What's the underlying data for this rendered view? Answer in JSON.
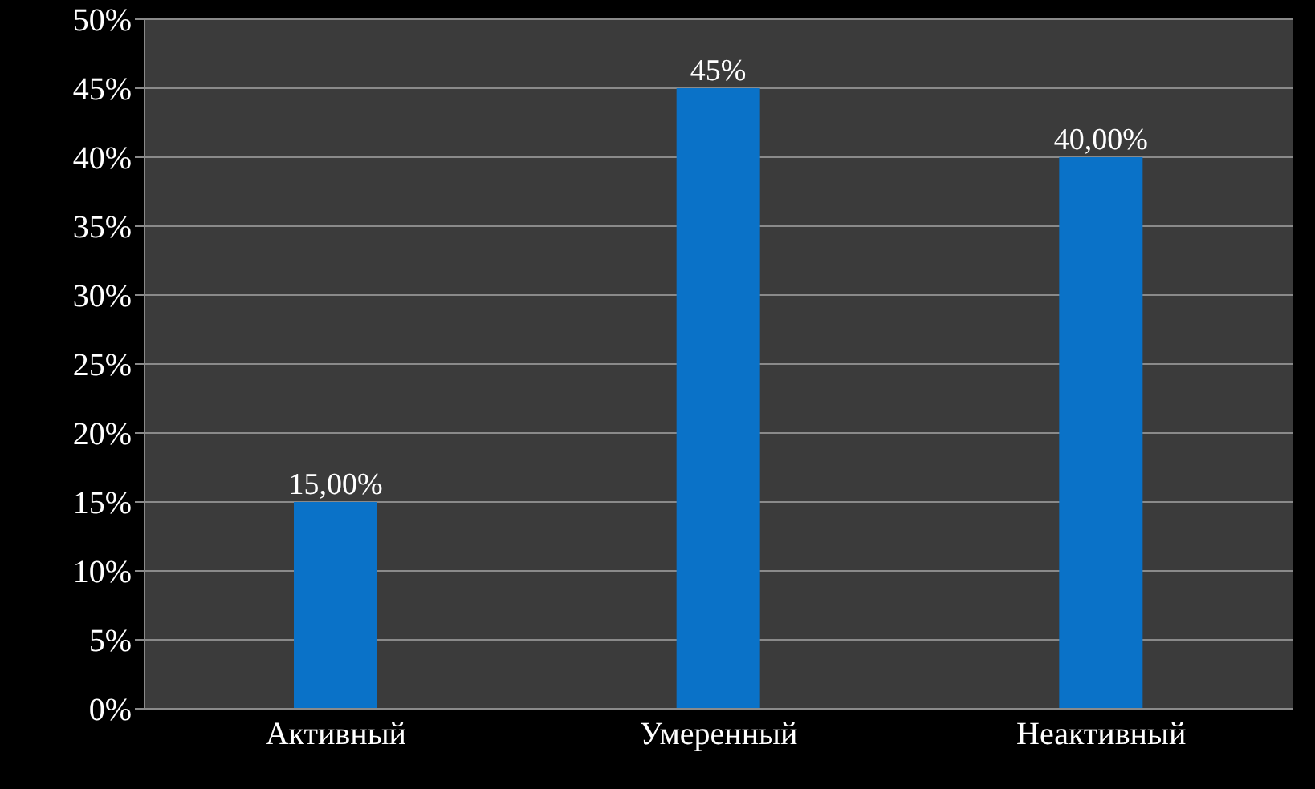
{
  "chart_data": {
    "type": "bar",
    "categories": [
      "Активный",
      "Умеренный",
      "Неактивный"
    ],
    "values": [
      15,
      45,
      40
    ],
    "color": "#0a72c8",
    "value_labels": [
      "15,00%",
      "45%",
      "40,00%"
    ],
    "ylim": [
      0,
      50
    ],
    "yticks": [
      {
        "value": 0,
        "label": "0%"
      },
      {
        "value": 5,
        "label": "5%"
      },
      {
        "value": 10,
        "label": "10%"
      },
      {
        "value": 15,
        "label": "15%"
      },
      {
        "value": 20,
        "label": "20%"
      },
      {
        "value": 25,
        "label": "25%"
      },
      {
        "value": 30,
        "label": "30%"
      },
      {
        "value": 35,
        "label": "35%"
      },
      {
        "value": 40,
        "label": "40%"
      },
      {
        "value": 45,
        "label": "45%"
      },
      {
        "value": 50,
        "label": "50%"
      }
    ],
    "grid": "y",
    "legend": false
  }
}
